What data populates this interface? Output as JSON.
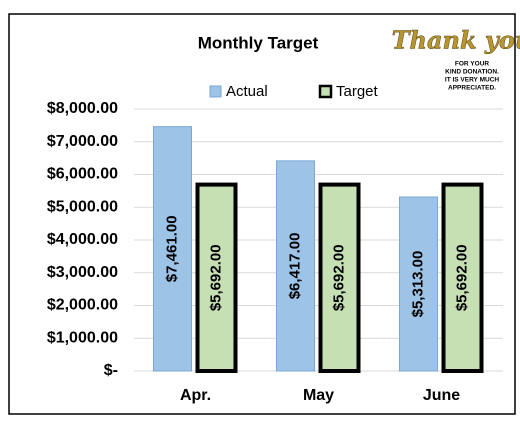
{
  "chart_data": {
    "type": "bar",
    "title": "Monthly Target",
    "categories": [
      "Apr.",
      "May",
      "June"
    ],
    "series": [
      {
        "name": "Actual",
        "color": "#9dc3e6",
        "values": [
          7461,
          6417,
          5313
        ],
        "value_labels": [
          "$7,461.00",
          "$6,417.00",
          "$5,313.00"
        ]
      },
      {
        "name": "Target",
        "color": "#c6e0b4",
        "values": [
          5692,
          5692,
          5692
        ],
        "value_labels": [
          "$5,692.00",
          "$5,692.00",
          "$5,692.00"
        ]
      }
    ],
    "ylim": [
      0,
      8000
    ],
    "yticks": [
      {
        "value": 0,
        "label": "$-"
      },
      {
        "value": 1000,
        "label": "$1,000.00"
      },
      {
        "value": 2000,
        "label": "$2,000.00"
      },
      {
        "value": 3000,
        "label": "$3,000.00"
      },
      {
        "value": 4000,
        "label": "$4,000.00"
      },
      {
        "value": 5000,
        "label": "$5,000.00"
      },
      {
        "value": 6000,
        "label": "$6,000.00"
      },
      {
        "value": 7000,
        "label": "$7,000.00"
      },
      {
        "value": 8000,
        "label": "$8,000.00"
      }
    ],
    "grid": true,
    "legend": "top",
    "note": {
      "heading": "Thank you",
      "lines": [
        "FOR YOUR",
        "KIND DONATION.",
        "IT IS VERY MUCH",
        "APPRECIATED."
      ]
    }
  }
}
